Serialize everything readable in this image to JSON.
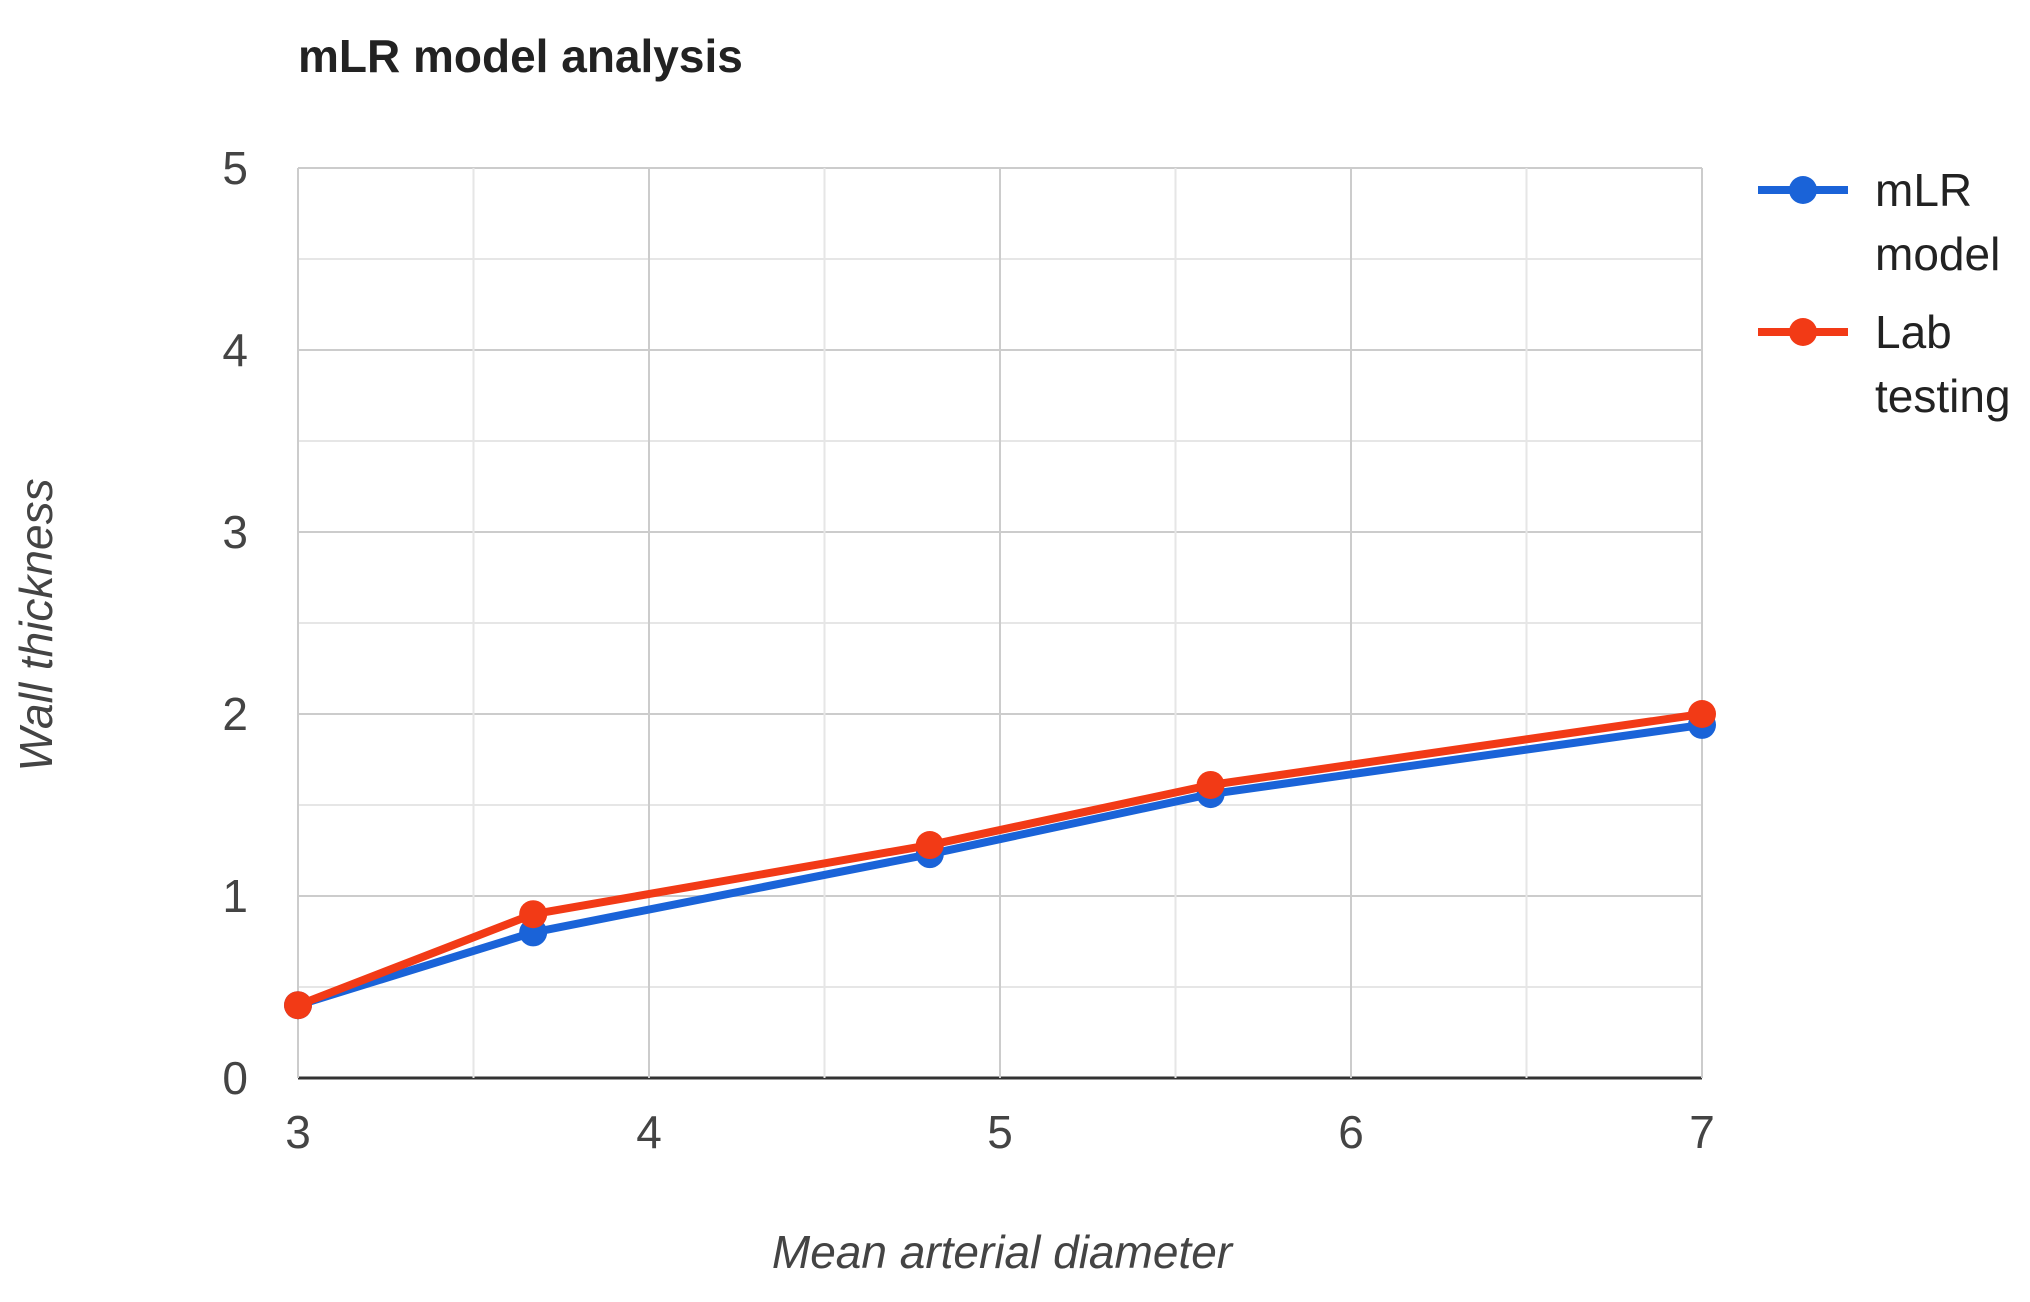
{
  "chart_data": {
    "type": "line",
    "title": "mLR model analysis",
    "xlabel": "Mean arterial diameter",
    "ylabel": "Wall thickness",
    "xlim": [
      3,
      7
    ],
    "ylim": [
      0,
      5
    ],
    "x_ticks": [
      "3",
      "4",
      "5",
      "6",
      "7"
    ],
    "y_ticks": [
      "0",
      "1",
      "2",
      "3",
      "4",
      "5"
    ],
    "grid": true,
    "legend_position": "right",
    "series": [
      {
        "name_lines": [
          "mLR",
          "model"
        ],
        "color": "#1a63d8",
        "x": [
          3.0,
          3.67,
          4.8,
          5.6,
          7.0
        ],
        "y": [
          0.4,
          0.8,
          1.23,
          1.56,
          1.94
        ]
      },
      {
        "name_lines": [
          "Lab",
          "testing"
        ],
        "color": "#f23a16",
        "x": [
          3.0,
          3.67,
          4.8,
          5.6,
          7.0
        ],
        "y": [
          0.4,
          0.9,
          1.28,
          1.61,
          2.0
        ]
      }
    ]
  }
}
